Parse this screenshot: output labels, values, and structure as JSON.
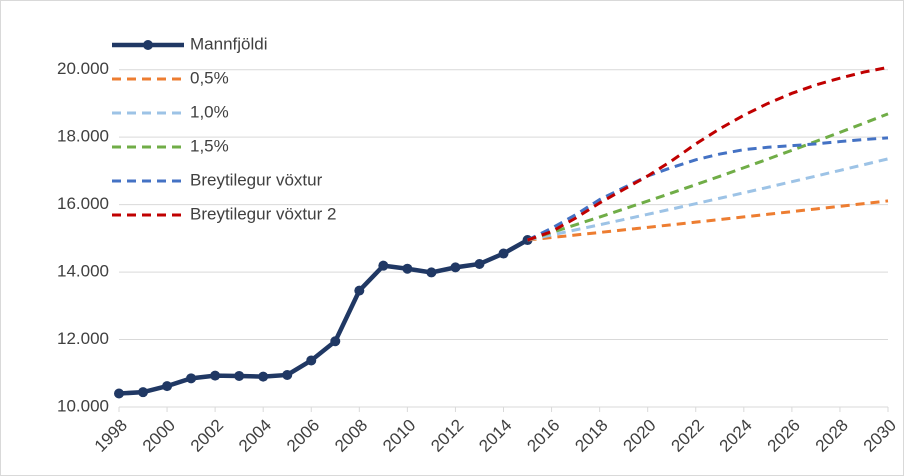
{
  "chart_data": {
    "type": "line",
    "xlim": [
      1998,
      2030
    ],
    "xticks": [
      1998,
      2000,
      2002,
      2004,
      2006,
      2008,
      2010,
      2012,
      2014,
      2016,
      2018,
      2020,
      2022,
      2024,
      2026,
      2028,
      2030
    ],
    "ylim": [
      10000,
      21000
    ],
    "yticks": [
      {
        "value": 10000,
        "label": "10.000"
      },
      {
        "value": 12000,
        "label": "12.000"
      },
      {
        "value": 14000,
        "label": "14.000"
      },
      {
        "value": 16000,
        "label": "16.000"
      },
      {
        "value": 18000,
        "label": "18.000"
      },
      {
        "value": 20000,
        "label": "20.000"
      }
    ],
    "grid": true,
    "legend": "top-left",
    "series": [
      {
        "name": "Mannfjöldi",
        "color": "#203864",
        "style": "solid",
        "markers": true,
        "x": [
          1998,
          1999,
          2000,
          2001,
          2002,
          2003,
          2004,
          2005,
          2006,
          2007,
          2008,
          2009,
          2010,
          2011,
          2012,
          2013,
          2014,
          2015
        ],
        "values": [
          10400,
          10440,
          10620,
          10850,
          10930,
          10920,
          10900,
          10950,
          11380,
          11950,
          13450,
          14190,
          14100,
          13990,
          14140,
          14240,
          14550,
          14950
        ]
      },
      {
        "name": "0,5%",
        "color": "#ed7d31",
        "style": "dashed",
        "x": [
          2015,
          2016,
          2017,
          2018,
          2019,
          2020,
          2021,
          2022,
          2023,
          2024,
          2025,
          2026,
          2027,
          2028,
          2029,
          2030
        ],
        "values": [
          14950,
          15025,
          15100,
          15175,
          15251,
          15327,
          15404,
          15481,
          15558,
          15636,
          15714,
          15793,
          15872,
          15951,
          16031,
          16111
        ]
      },
      {
        "name": "1,0%",
        "color": "#9dc3e6",
        "style": "dashed",
        "x": [
          2015,
          2016,
          2017,
          2018,
          2019,
          2020,
          2021,
          2022,
          2023,
          2024,
          2025,
          2026,
          2027,
          2028,
          2029,
          2030
        ],
        "values": [
          14950,
          15100,
          15251,
          15403,
          15557,
          15713,
          15870,
          16029,
          16189,
          16351,
          16514,
          16680,
          16846,
          17015,
          17185,
          17357
        ]
      },
      {
        "name": "1,5%",
        "color": "#70ad47",
        "style": "dashed",
        "x": [
          2015,
          2016,
          2017,
          2018,
          2019,
          2020,
          2021,
          2022,
          2023,
          2024,
          2025,
          2026,
          2027,
          2028,
          2029,
          2030
        ],
        "values": [
          14950,
          15174,
          15402,
          15633,
          15868,
          16106,
          16347,
          16593,
          16841,
          17094,
          17350,
          17611,
          17875,
          18143,
          18415,
          18691
        ]
      },
      {
        "name": "Breytilegur vöxtur",
        "color": "#4472c4",
        "style": "dashed",
        "x": [
          2015,
          2016,
          2017,
          2018,
          2019,
          2020,
          2021,
          2022,
          2023,
          2024,
          2025,
          2026,
          2027,
          2028,
          2029,
          2030
        ],
        "values": [
          14950,
          15300,
          15700,
          16150,
          16500,
          16850,
          17100,
          17330,
          17500,
          17630,
          17700,
          17750,
          17800,
          17870,
          17930,
          17980
        ]
      },
      {
        "name": "Breytilegur vöxtur 2",
        "color": "#c00000",
        "style": "dashed",
        "x": [
          2015,
          2016,
          2017,
          2018,
          2019,
          2020,
          2021,
          2022,
          2023,
          2024,
          2025,
          2026,
          2027,
          2028,
          2029,
          2030
        ],
        "values": [
          14950,
          15200,
          15600,
          16050,
          16450,
          16850,
          17300,
          17800,
          18250,
          18650,
          19000,
          19300,
          19550,
          19750,
          19930,
          20070
        ]
      }
    ]
  }
}
